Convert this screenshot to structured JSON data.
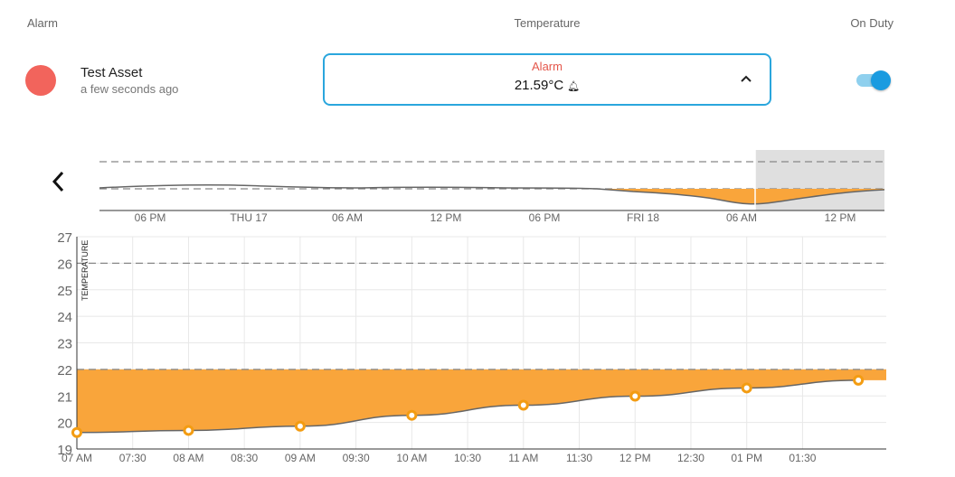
{
  "columns": {
    "alarm": "Alarm",
    "temperature": "Temperature",
    "on_duty": "On Duty"
  },
  "asset": {
    "name": "Test Asset",
    "updated": "a few seconds ago",
    "status_color": "#f2645c"
  },
  "temperature_card": {
    "status": "Alarm",
    "value": "21.59°C",
    "alarm_icon": "bell-icon",
    "expand_icon": "chevron-up-icon"
  },
  "on_duty_toggle": {
    "on": true,
    "color": "#1a9be0"
  },
  "navigation": {
    "back_icon": "chevron-left-icon"
  },
  "colors": {
    "alarm_fill": "#f9a53b",
    "marker": "#f39c12",
    "accent": "#2aa6dd"
  },
  "chart_data": [
    {
      "type": "area",
      "role": "overview",
      "x_tick_labels": [
        "06 PM",
        "THU 17",
        "06 AM",
        "12 PM",
        "06 PM",
        "FRI 18",
        "06 AM",
        "12 PM"
      ],
      "threshold_lines": [
        "upper",
        "lower"
      ],
      "selection_window": "last part of FRI 18 (06 AM – now)",
      "grid": false
    },
    {
      "type": "line",
      "role": "main",
      "ylabel": "TEMPERATURE",
      "ylim": [
        19,
        27
      ],
      "y_ticks": [
        19,
        20,
        21,
        22,
        23,
        24,
        25,
        26,
        27
      ],
      "x_tick_labels": [
        "07 AM",
        "07:30",
        "08 AM",
        "08:30",
        "09 AM",
        "09:30",
        "10 AM",
        "10:30",
        "11 AM",
        "11:30",
        "12 PM",
        "12:30",
        "01 PM",
        "01:30"
      ],
      "x_range_hours": [
        7,
        14.25
      ],
      "thresholds": {
        "upper": 26,
        "lower": 22
      },
      "grid": true,
      "series": [
        {
          "x": [
            7.0,
            8.0,
            9.0,
            10.0,
            11.0,
            12.0,
            13.0,
            14.0
          ],
          "values": [
            19.62,
            19.7,
            19.86,
            20.27,
            20.65,
            20.99,
            21.3,
            21.59
          ]
        }
      ]
    }
  ]
}
